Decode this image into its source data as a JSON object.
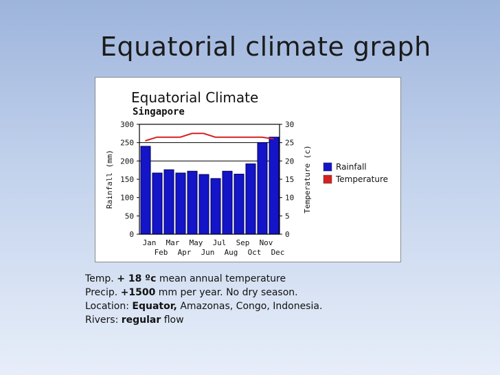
{
  "slide": {
    "title": "Equatorial climate graph"
  },
  "notes": {
    "temp_label": "Temp. ",
    "temp_value": "+ 18 ºc",
    "temp_rest": " mean annual temperature",
    "precip_label": "Precip. ",
    "precip_value": "+1500",
    "precip_rest": " mm per year. No dry season.",
    "location_label": "Location: ",
    "location_value": "Equator,",
    "location_rest": " Amazonas, Congo, Indonesia.",
    "rivers_label": "Rivers: ",
    "rivers_value": "regular",
    "rivers_rest": " flow"
  },
  "chart_data": {
    "type": "bar",
    "title": "Equatorial Climate",
    "subtitle": "Singapore",
    "categories": [
      "Jan",
      "Feb",
      "Mar",
      "Apr",
      "May",
      "Jun",
      "Jul",
      "Aug",
      "Sep",
      "Oct",
      "Nov",
      "Dec"
    ],
    "series": [
      {
        "name": "Rainfall",
        "type": "bar",
        "axis": "left",
        "color": "#1414c8",
        "values": [
          240,
          167,
          176,
          167,
          172,
          163,
          152,
          172,
          164,
          192,
          250,
          265
        ]
      },
      {
        "name": "Temperature",
        "type": "line",
        "axis": "right",
        "color": "#d62020",
        "values": [
          25.5,
          26.5,
          26.5,
          26.5,
          27.5,
          27.5,
          26.5,
          26.5,
          26.5,
          26.5,
          26.5,
          26
        ]
      }
    ],
    "ylabel_left": "Rainfall (mm)",
    "ylabel_right": "Temperature (c)",
    "ylim_left": [
      0,
      300
    ],
    "ylim_right": [
      0,
      30
    ],
    "yticks_left": [
      "0",
      "50",
      "100",
      "150",
      "200",
      "250",
      "300"
    ],
    "yticks_right": [
      "0",
      "5",
      "10",
      "15",
      "20",
      "25",
      "30"
    ],
    "xticks_top": [
      "Jan",
      "Mar",
      "May",
      "Jul",
      "Sep",
      "Nov"
    ],
    "xticks_bottom": [
      "Feb",
      "Apr",
      "Jun",
      "Aug",
      "Oct",
      "Dec"
    ],
    "reference_lines_right": [
      20,
      25
    ],
    "legend_position": "right",
    "grid": false
  }
}
